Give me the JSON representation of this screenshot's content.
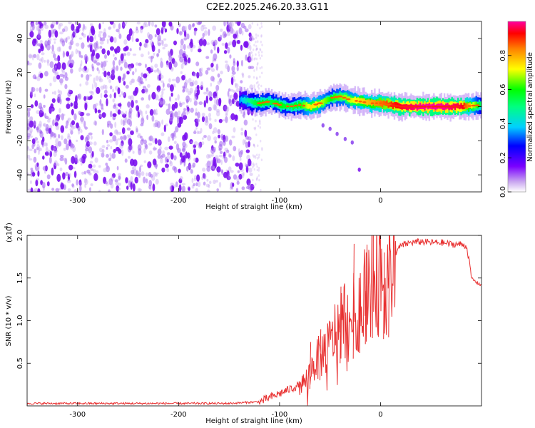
{
  "title": "C2E2.2025.246.20.33.G11",
  "chart_data": [
    {
      "type": "heatmap",
      "name": "spectrogram",
      "xlabel": "Height of straight line (km)",
      "ylabel": "Frequency (Hz)",
      "xlim": [
        -350,
        100
      ],
      "ylim": [
        -50,
        50
      ],
      "xticks": [
        -300,
        -200,
        -100,
        0
      ],
      "xtick_labels": [
        "-300",
        "-200",
        "-100",
        "0"
      ],
      "yticks": [
        -40,
        -20,
        0,
        20,
        40
      ],
      "ytick_labels": [
        "-40",
        "-20",
        "0",
        "20",
        "40"
      ],
      "colorbar": {
        "label": "Normalized spectral amplitude",
        "range": [
          0,
          1
        ],
        "ticks": [
          0.0,
          0.2,
          0.4,
          0.6,
          0.8
        ],
        "tick_labels": [
          "0.0",
          "0.2",
          "0.4",
          "0.6",
          "0.8"
        ]
      },
      "noise_region_x": [
        -350,
        -127
      ],
      "signal_ridge": {
        "x": [
          -140,
          -130,
          -120,
          -110,
          -100,
          -90,
          -80,
          -70,
          -60,
          -50,
          -40,
          -30,
          -20,
          -10,
          0,
          10,
          20,
          40,
          60,
          80,
          100
        ],
        "freq": [
          4,
          3,
          2,
          3,
          1,
          0,
          1,
          0,
          2,
          5,
          6,
          4,
          3,
          2,
          2,
          1,
          0,
          0,
          0,
          0,
          1
        ],
        "amplitude": [
          0.35,
          0.5,
          0.6,
          0.55,
          0.6,
          0.55,
          0.6,
          0.75,
          0.7,
          0.6,
          0.65,
          0.7,
          0.75,
          0.8,
          0.85,
          0.9,
          0.95,
          1.0,
          1.0,
          0.95,
          0.5
        ]
      },
      "secondary_trace": {
        "x": [
          -57,
          -50,
          -43,
          -35,
          -28,
          -21
        ],
        "freq": [
          -11,
          -13,
          -16,
          -19,
          -21,
          -37
        ]
      }
    },
    {
      "type": "line",
      "name": "snr",
      "xlabel": "Height of straight line (km)",
      "ylabel": "SNR (10 * v/v)",
      "y_scale_label": "(x10",
      "y_scale_exponent": "4",
      "xlim": [
        -350,
        100
      ],
      "ylim": [
        0,
        2.0
      ],
      "xticks": [
        -300,
        -200,
        -100,
        0
      ],
      "xtick_labels": [
        "-300",
        "-200",
        "-100",
        "0"
      ],
      "yticks": [
        0.5,
        1.0,
        1.5,
        2.0
      ],
      "ytick_labels": [
        "0.5",
        "1.0",
        "1.5",
        "2.0"
      ],
      "series": [
        {
          "name": "SNR",
          "color": "#e83030",
          "x": [
            -350,
            -300,
            -250,
            -200,
            -150,
            -120,
            -110,
            -100,
            -90,
            -80,
            -75,
            -70,
            -65,
            -60,
            -55,
            -50,
            -45,
            -40,
            -35,
            -30,
            -25,
            -20,
            -15,
            -10,
            -5,
            0,
            5,
            10,
            15,
            20,
            25,
            30,
            40,
            50,
            60,
            70,
            80,
            85,
            88,
            90,
            95,
            100
          ],
          "y": [
            0.03,
            0.03,
            0.03,
            0.03,
            0.03,
            0.05,
            0.1,
            0.15,
            0.2,
            0.25,
            0.3,
            0.4,
            0.55,
            0.6,
            0.7,
            0.75,
            0.9,
            1.0,
            1.1,
            1.05,
            1.15,
            1.3,
            1.45,
            1.55,
            1.65,
            1.6,
            1.55,
            1.65,
            1.8,
            1.88,
            1.9,
            1.92,
            1.93,
            1.92,
            1.92,
            1.9,
            1.9,
            1.88,
            1.7,
            1.5,
            1.45,
            1.42
          ]
        }
      ],
      "peaks": {
        "x": [
          -70,
          -60,
          -40,
          -27,
          -15,
          -8,
          -2,
          3,
          8
        ],
        "y": [
          0.75,
          0.9,
          1.4,
          1.9,
          1.8,
          2.0,
          2.05,
          1.8,
          1.95
        ]
      }
    }
  ]
}
